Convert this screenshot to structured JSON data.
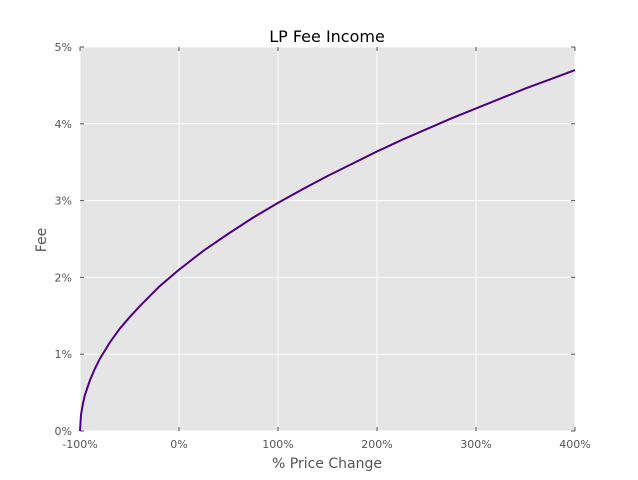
{
  "chart_data": {
    "type": "line",
    "title": "LP Fee Income",
    "xlabel": "% Price Change",
    "ylabel": "Fee",
    "xlim": [
      -100,
      400
    ],
    "ylim": [
      0,
      5
    ],
    "xticks": [
      -100,
      0,
      100,
      200,
      300,
      400
    ],
    "xtick_labels": [
      "-100%",
      "0%",
      "100%",
      "200%",
      "300%",
      "400%"
    ],
    "yticks": [
      0,
      1,
      2,
      3,
      4,
      5
    ],
    "ytick_labels": [
      "0%",
      "1%",
      "2%",
      "3%",
      "4%",
      "5%"
    ],
    "grid": true,
    "series": [
      {
        "color": "#4b0082",
        "x": [
          -100,
          -99,
          -97,
          -95,
          -90,
          -85,
          -80,
          -70,
          -60,
          -50,
          -40,
          -30,
          -20,
          -10,
          0,
          25,
          50,
          75,
          100,
          125,
          150,
          175,
          200,
          225,
          250,
          275,
          300,
          325,
          350,
          375,
          400
        ],
        "y": [
          0,
          0.21,
          0.36,
          0.47,
          0.66,
          0.81,
          0.94,
          1.15,
          1.33,
          1.48,
          1.62,
          1.75,
          1.88,
          1.99,
          2.1,
          2.35,
          2.57,
          2.78,
          2.97,
          3.15,
          3.32,
          3.48,
          3.64,
          3.79,
          3.93,
          4.07,
          4.2,
          4.33,
          4.46,
          4.58,
          4.7
        ]
      }
    ]
  },
  "colors": {
    "plot_background": "#e5e5e5",
    "grid": "#ffffff",
    "line": "#4b0082"
  }
}
